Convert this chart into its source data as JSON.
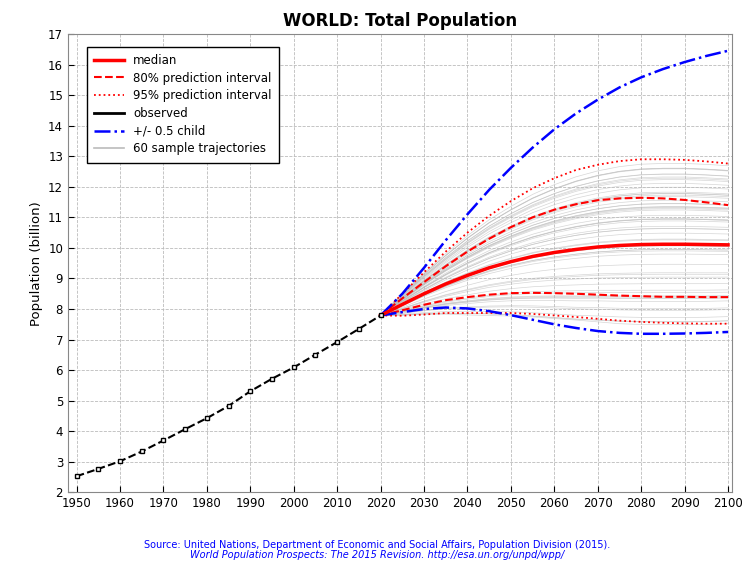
{
  "title": "WORLD: Total Population",
  "ylabel": "Population (billion)",
  "source_line1": "Source: United Nations, Department of Economic and Social Affairs, Population Division (2015).",
  "source_line2": "World Population Prospects: The 2015 Revision. http://esa.un.org/unpd/wpp/",
  "xlim": [
    1948,
    2101
  ],
  "ylim": [
    2,
    17
  ],
  "yticks": [
    2,
    3,
    4,
    5,
    6,
    7,
    8,
    9,
    10,
    11,
    12,
    13,
    14,
    15,
    16,
    17
  ],
  "xticks": [
    1950,
    1960,
    1970,
    1980,
    1990,
    2000,
    2010,
    2020,
    2030,
    2040,
    2050,
    2060,
    2070,
    2080,
    2090,
    2100
  ],
  "observed_years": [
    1950,
    1955,
    1960,
    1965,
    1970,
    1975,
    1980,
    1985,
    1990,
    1995,
    2000,
    2005,
    2010,
    2015,
    2020
  ],
  "observed_pop": [
    2.53,
    2.77,
    3.02,
    3.34,
    3.7,
    4.07,
    4.43,
    4.83,
    5.31,
    5.72,
    6.09,
    6.51,
    6.92,
    7.35,
    7.79
  ],
  "forecast_years": [
    2020,
    2025,
    2030,
    2035,
    2040,
    2045,
    2050,
    2055,
    2060,
    2065,
    2070,
    2075,
    2080,
    2085,
    2090,
    2095,
    2100
  ],
  "median": [
    7.79,
    8.15,
    8.5,
    8.82,
    9.1,
    9.35,
    9.55,
    9.72,
    9.85,
    9.95,
    10.03,
    10.08,
    10.11,
    10.12,
    10.12,
    10.11,
    10.1
  ],
  "pi80_upper": [
    7.79,
    8.35,
    8.88,
    9.4,
    9.88,
    10.3,
    10.68,
    11.0,
    11.25,
    11.43,
    11.56,
    11.62,
    11.64,
    11.62,
    11.57,
    11.49,
    11.4
  ],
  "pi80_lower": [
    7.79,
    7.96,
    8.14,
    8.29,
    8.39,
    8.47,
    8.52,
    8.53,
    8.52,
    8.5,
    8.47,
    8.44,
    8.42,
    8.4,
    8.4,
    8.39,
    8.39
  ],
  "pi95_upper": [
    7.79,
    8.5,
    9.2,
    9.88,
    10.5,
    11.05,
    11.53,
    11.95,
    12.28,
    12.55,
    12.72,
    12.84,
    12.9,
    12.9,
    12.88,
    12.83,
    12.76
  ],
  "pi95_lower": [
    7.79,
    7.78,
    7.82,
    7.87,
    7.87,
    7.87,
    7.87,
    7.84,
    7.79,
    7.74,
    7.68,
    7.62,
    7.58,
    7.55,
    7.53,
    7.52,
    7.52
  ],
  "plus05_child": [
    7.79,
    8.5,
    9.35,
    10.25,
    11.1,
    11.9,
    12.62,
    13.28,
    13.88,
    14.4,
    14.85,
    15.25,
    15.58,
    15.85,
    16.08,
    16.28,
    16.45
  ],
  "minus05_child": [
    7.79,
    7.9,
    8.0,
    8.05,
    8.02,
    7.93,
    7.8,
    7.65,
    7.5,
    7.38,
    7.28,
    7.22,
    7.19,
    7.19,
    7.2,
    7.22,
    7.25
  ],
  "background_color": "#ffffff",
  "grid_color": "#bbbbbb",
  "sample_color": "#bbbbbb",
  "n_sample_trajectories": 60
}
